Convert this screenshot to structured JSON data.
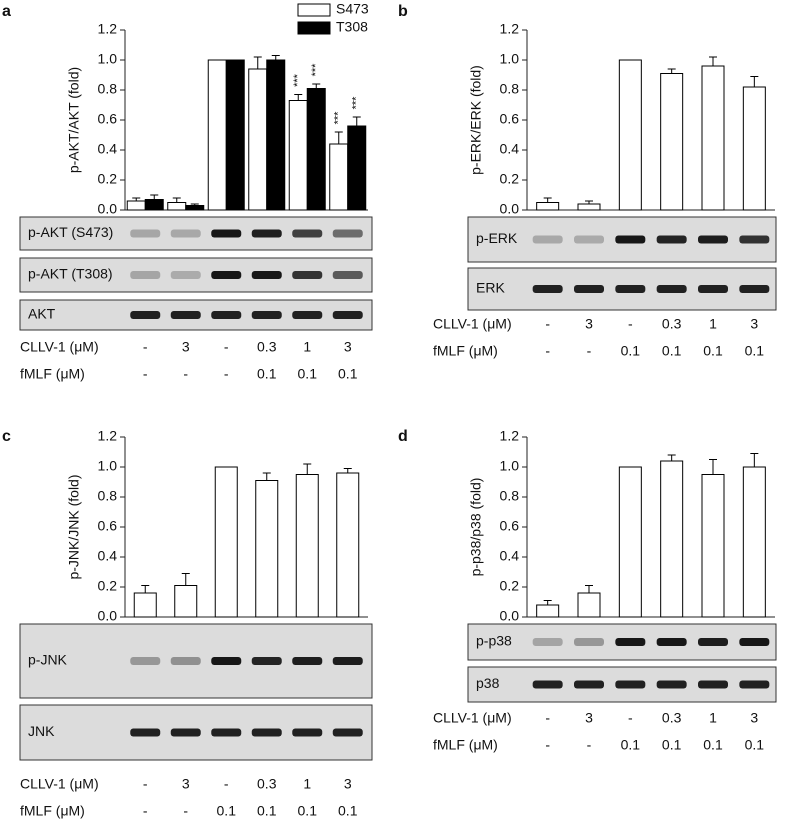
{
  "chart_data": [
    {
      "panel": "a",
      "type": "bar",
      "ylabel": "p-AKT/AKT (fold)",
      "ylim": [
        0,
        1.2
      ],
      "yticks": [
        {
          "value": 0,
          "label": "0.0"
        },
        0.2,
        0.4,
        0.6,
        0.8,
        {
          "value": 1,
          "label": "1.0"
        },
        1.2
      ],
      "legend": "top-right",
      "series": [
        {
          "name": "S473",
          "color": "#ffffff",
          "values": [
            0.06,
            0.05,
            1.0,
            0.94,
            0.73,
            0.44
          ],
          "errors": [
            0.02,
            0.03,
            0,
            0.08,
            0.04,
            0.08
          ],
          "significance": [
            null,
            null,
            null,
            null,
            "***",
            "***"
          ]
        },
        {
          "name": "T308",
          "color": "#000000",
          "values": [
            0.07,
            0.03,
            1.0,
            1.0,
            0.81,
            0.56
          ],
          "errors": [
            0.03,
            0.01,
            0,
            0.03,
            0.03,
            0.06
          ],
          "significance": [
            null,
            null,
            null,
            null,
            "***",
            "***"
          ]
        }
      ],
      "blots": [
        "p-AKT (S473)",
        "p-AKT (T308)",
        "AKT"
      ],
      "conditions": [
        {
          "label": "CLLV-1 (μM)",
          "values": [
            "-",
            "3",
            "-",
            "0.3",
            "1",
            "3"
          ]
        },
        {
          "label": "fMLF (μM)",
          "values": [
            "-",
            "-",
            "-",
            "0.1",
            "0.1",
            "0.1"
          ]
        }
      ]
    },
    {
      "panel": "b",
      "type": "bar",
      "ylabel": "p-ERK/ERK (fold)",
      "ylim": [
        0,
        1.2
      ],
      "yticks": [
        {
          "value": 0,
          "label": "0.0"
        },
        0.2,
        0.4,
        0.6,
        0.8,
        {
          "value": 1,
          "label": "1.0"
        },
        1.2
      ],
      "color": "#ffffff",
      "values": [
        0.05,
        0.04,
        1.0,
        0.91,
        0.96,
        0.82
      ],
      "errors": [
        0.03,
        0.02,
        0,
        0.03,
        0.06,
        0.07
      ],
      "blots": [
        "p-ERK",
        "ERK"
      ],
      "conditions": [
        {
          "label": "CLLV-1 (μM)",
          "values": [
            "-",
            "3",
            "-",
            "0.3",
            "1",
            "3"
          ]
        },
        {
          "label": "fMLF (μM)",
          "values": [
            "-",
            "-",
            "0.1",
            "0.1",
            "0.1",
            "0.1"
          ]
        }
      ]
    },
    {
      "panel": "c",
      "type": "bar",
      "ylabel": "p-JNK/JNK (fold)",
      "ylim": [
        0,
        1.2
      ],
      "yticks": [
        {
          "value": 0,
          "label": "0.0"
        },
        0.2,
        0.4,
        0.6,
        0.8,
        {
          "value": 1,
          "label": "1.0"
        },
        1.2
      ],
      "color": "#ffffff",
      "values": [
        0.16,
        0.21,
        1.0,
        0.91,
        0.95,
        0.96
      ],
      "errors": [
        0.05,
        0.08,
        0,
        0.05,
        0.07,
        0.03
      ],
      "blots": [
        "p-JNK",
        "JNK"
      ],
      "conditions": [
        {
          "label": "CLLV-1 (μM)",
          "values": [
            "-",
            "3",
            "-",
            "0.3",
            "1",
            "3"
          ]
        },
        {
          "label": "fMLF (μM)",
          "values": [
            "-",
            "-",
            "0.1",
            "0.1",
            "0.1",
            "0.1"
          ]
        }
      ]
    },
    {
      "panel": "d",
      "type": "bar",
      "ylabel": "p-p38/p38 (fold)",
      "ylim": [
        0,
        1.2
      ],
      "yticks": [
        {
          "value": 0,
          "label": "0.0"
        },
        0.2,
        0.4,
        0.6,
        0.8,
        {
          "value": 1,
          "label": "1.0"
        },
        1.2
      ],
      "color": "#ffffff",
      "values": [
        0.08,
        0.16,
        1.0,
        1.04,
        0.95,
        1.0
      ],
      "errors": [
        0.03,
        0.05,
        0,
        0.04,
        0.1,
        0.09
      ],
      "blots": [
        "p-p38",
        "p38"
      ],
      "conditions": [
        {
          "label": "CLLV-1 (μM)",
          "values": [
            "-",
            "3",
            "-",
            "0.3",
            "1",
            "3"
          ]
        },
        {
          "label": "fMLF (μM)",
          "values": [
            "-",
            "-",
            "0.1",
            "0.1",
            "0.1",
            "0.1"
          ]
        }
      ]
    }
  ]
}
